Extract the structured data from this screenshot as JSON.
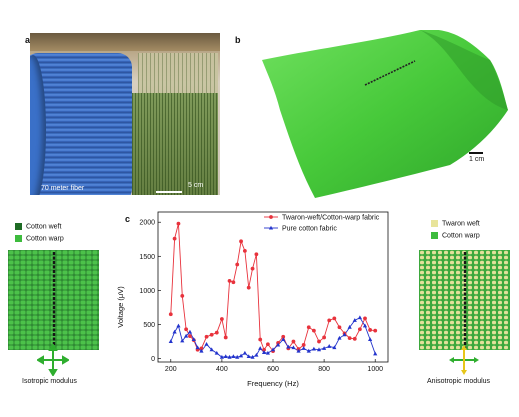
{
  "panels": {
    "a": "a",
    "b": "b",
    "c": "c"
  },
  "photo_a": {
    "fiber_label": "70 meter fiber",
    "scale_label": "5 cm"
  },
  "photo_b": {
    "scale_label": "1 cm"
  },
  "left_schematic": {
    "legend": [
      {
        "label": "Cotton weft",
        "color": "#1e6b25"
      },
      {
        "label": "Cotton warp",
        "color": "#3dbb3d"
      }
    ],
    "caption": "Isotropic modulus"
  },
  "right_schematic": {
    "legend": [
      {
        "label": "Twaron weft",
        "color": "#e8e49a"
      },
      {
        "label": "Cotton warp",
        "color": "#3dbb3d"
      }
    ],
    "caption": "Anisotropic modulus"
  },
  "chart_data": {
    "type": "line",
    "xlabel": "Frequency (Hz)",
    "ylabel": "Voltage (μV)",
    "xlim": [
      150,
      1050
    ],
    "ylim": [
      -50,
      2150
    ],
    "xticks": [
      200,
      400,
      600,
      800,
      1000
    ],
    "yticks": [
      0,
      500,
      1000,
      1500,
      2000
    ],
    "legend_position": "top-right",
    "series": [
      {
        "name": "Twaron-weft/Cotton-warp fabric",
        "color": "#e8323c",
        "marker": "circle",
        "x": [
          200,
          215,
          230,
          245,
          260,
          275,
          290,
          305,
          320,
          340,
          360,
          380,
          400,
          415,
          430,
          445,
          460,
          475,
          490,
          505,
          520,
          535,
          550,
          565,
          580,
          600,
          620,
          640,
          660,
          680,
          700,
          720,
          740,
          760,
          780,
          800,
          820,
          840,
          860,
          880,
          900,
          920,
          940,
          960,
          980,
          1000
        ],
        "y": [
          650,
          1760,
          1980,
          920,
          430,
          330,
          270,
          130,
          150,
          320,
          350,
          380,
          580,
          310,
          1140,
          1120,
          1380,
          1720,
          1580,
          1040,
          1320,
          1530,
          280,
          130,
          210,
          110,
          230,
          320,
          150,
          250,
          140,
          200,
          460,
          410,
          250,
          310,
          560,
          590,
          460,
          370,
          300,
          290,
          430,
          590,
          420,
          410
        ]
      },
      {
        "name": "Pure cotton fabric",
        "color": "#2233cc",
        "marker": "triangle",
        "x": [
          200,
          215,
          230,
          245,
          260,
          275,
          290,
          305,
          320,
          340,
          360,
          380,
          400,
          415,
          430,
          445,
          460,
          475,
          490,
          505,
          520,
          535,
          550,
          565,
          580,
          600,
          620,
          640,
          660,
          680,
          700,
          720,
          740,
          760,
          780,
          800,
          820,
          840,
          860,
          880,
          900,
          920,
          940,
          960,
          980,
          1000
        ],
        "y": [
          250,
          390,
          480,
          260,
          330,
          390,
          280,
          160,
          110,
          210,
          130,
          80,
          20,
          30,
          20,
          30,
          20,
          40,
          80,
          30,
          20,
          50,
          150,
          90,
          80,
          130,
          200,
          280,
          170,
          160,
          110,
          150,
          110,
          140,
          130,
          150,
          180,
          160,
          300,
          350,
          460,
          560,
          600,
          480,
          280,
          70
        ]
      }
    ]
  }
}
